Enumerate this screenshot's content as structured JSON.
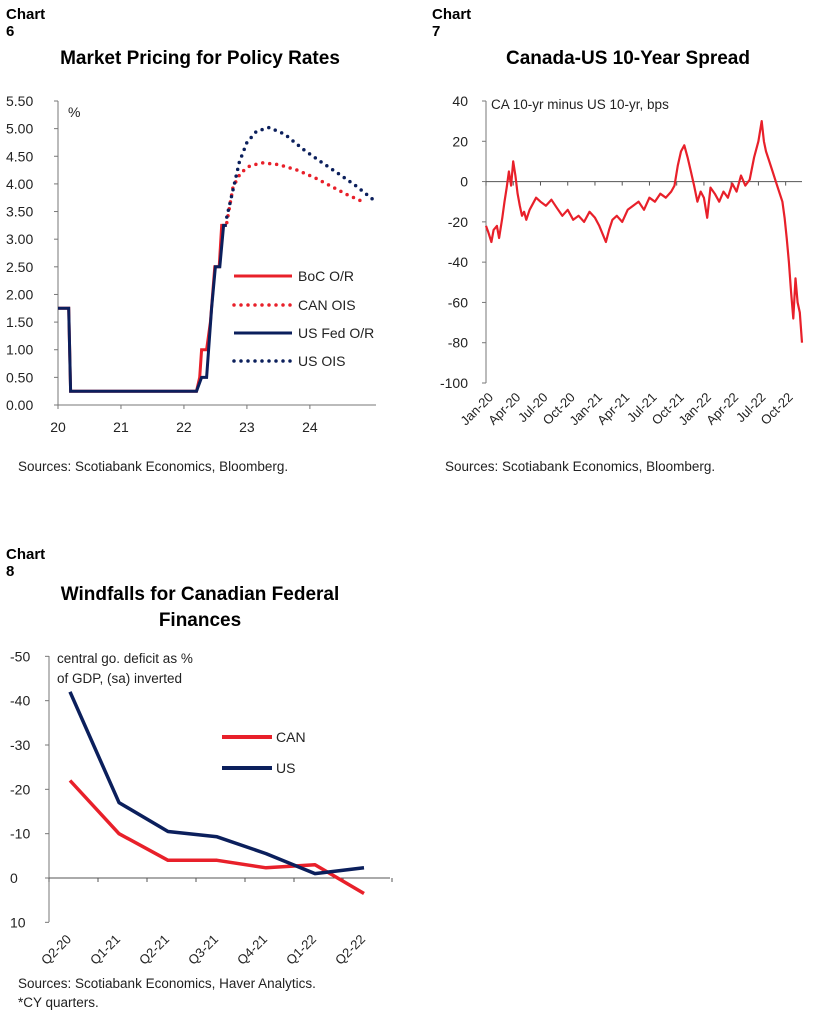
{
  "chart6": {
    "label": "Chart 6",
    "title": "Market Pricing for Policy Rates",
    "source": "Sources: Scotiabank Economics, Bloomberg."
  },
  "chart7": {
    "label": "Chart 7",
    "title": "Canada-US 10-Year Spread",
    "source": "Sources: Scotiabank Economics, Bloomberg."
  },
  "chart8": {
    "label": "Chart 8",
    "title_line1": "Windfalls for Canadian Federal",
    "title_line2": "Finances",
    "source_line1": "Sources: Scotiabank Economics, Haver Analytics.",
    "source_line2": "*CY quarters."
  },
  "colors": {
    "red": "#e8202a",
    "navy": "#0b1f5c"
  },
  "chart_data": [
    {
      "id": "chart6",
      "type": "line",
      "title": "Market Pricing for Policy Rates",
      "ylabel": "%",
      "ylim": [
        0,
        5.5
      ],
      "yticks": [
        "0.00",
        "0.50",
        "1.00",
        "1.50",
        "2.00",
        "2.50",
        "3.00",
        "3.50",
        "4.00",
        "4.50",
        "5.00",
        "5.50"
      ],
      "xlim": [
        20,
        25.05
      ],
      "xticks": [
        "20",
        "21",
        "22",
        "23",
        "24"
      ],
      "legend": "middle-right",
      "series": [
        {
          "name": "BoC O/R",
          "style": "solid",
          "color": "#e8202a",
          "x": [
            20,
            20.17,
            20.2,
            22.2,
            22.25,
            22.28,
            22.36,
            22.42,
            22.49,
            22.56,
            22.6,
            22.68
          ],
          "y": [
            1.75,
            1.75,
            0.25,
            0.25,
            0.5,
            1.0,
            1.0,
            1.5,
            2.5,
            2.5,
            3.25,
            3.25
          ]
        },
        {
          "name": "CAN OIS",
          "style": "dotted",
          "color": "#e8202a",
          "x": [
            22.68,
            22.78,
            22.9,
            23.05,
            23.25,
            23.5,
            23.8,
            24.1,
            24.4,
            24.6,
            24.8
          ],
          "y": [
            3.3,
            3.95,
            4.2,
            4.33,
            4.38,
            4.35,
            4.25,
            4.1,
            3.92,
            3.8,
            3.7
          ]
        },
        {
          "name": "US Fed O/R",
          "style": "solid",
          "color": "#0b1f5c",
          "x": [
            20,
            20.17,
            20.2,
            22.2,
            22.28,
            22.36,
            22.44,
            22.5,
            22.57,
            22.63,
            22.68
          ],
          "y": [
            1.75,
            1.75,
            0.25,
            0.25,
            0.5,
            0.5,
            1.75,
            2.5,
            2.5,
            3.25,
            3.25
          ]
        },
        {
          "name": "US OIS",
          "style": "dotted",
          "color": "#0b1f5c",
          "x": [
            22.68,
            22.78,
            22.88,
            23.0,
            23.15,
            23.35,
            23.6,
            23.9,
            24.2,
            24.5,
            24.75,
            25.0
          ],
          "y": [
            3.4,
            3.9,
            4.4,
            4.75,
            4.95,
            5.02,
            4.9,
            4.62,
            4.38,
            4.15,
            3.95,
            3.72
          ]
        }
      ]
    },
    {
      "id": "chart7",
      "type": "line",
      "title": "Canada-US 10-Year Spread",
      "annotation": "CA 10-yr minus US 10-yr, bps",
      "ylim": [
        -100,
        40
      ],
      "yticks": [
        "40",
        "20",
        "0",
        "-20",
        "-40",
        "-60",
        "-80",
        "-100"
      ],
      "xlim": [
        2020.0,
        2022.9
      ],
      "xticks": [
        "Jan-20",
        "Apr-20",
        "Jul-20",
        "Oct-20",
        "Jan-21",
        "Apr-21",
        "Jul-21",
        "Oct-21",
        "Jan-22",
        "Apr-22",
        "Jul-22",
        "Oct-22"
      ],
      "series": [
        {
          "name": "",
          "color": "#e8202a",
          "x": [
            2020.0,
            2020.02,
            2020.05,
            2020.07,
            2020.1,
            2020.12,
            2020.15,
            2020.17,
            2020.19,
            2020.21,
            2020.23,
            2020.25,
            2020.27,
            2020.29,
            2020.31,
            2020.33,
            2020.35,
            2020.37,
            2020.4,
            2020.43,
            2020.46,
            2020.5,
            2020.55,
            2020.6,
            2020.65,
            2020.7,
            2020.75,
            2020.8,
            2020.85,
            2020.9,
            2020.95,
            2021.0,
            2021.04,
            2021.07,
            2021.1,
            2021.13,
            2021.16,
            2021.2,
            2021.25,
            2021.3,
            2021.35,
            2021.4,
            2021.45,
            2021.5,
            2021.55,
            2021.6,
            2021.65,
            2021.7,
            2021.73,
            2021.76,
            2021.79,
            2021.82,
            2021.85,
            2021.88,
            2021.91,
            2021.94,
            2021.97,
            2022.0,
            2022.03,
            2022.06,
            2022.1,
            2022.14,
            2022.18,
            2022.22,
            2022.26,
            2022.3,
            2022.34,
            2022.38,
            2022.42,
            2022.46,
            2022.5,
            2022.53,
            2022.55,
            2022.57,
            2022.6,
            2022.63,
            2022.66,
            2022.69,
            2022.72,
            2022.74,
            2022.76,
            2022.78,
            2022.8,
            2022.82,
            2022.84,
            2022.86,
            2022.88,
            2022.9
          ],
          "y": [
            -22,
            -25,
            -30,
            -24,
            -22,
            -28,
            -18,
            -10,
            -3,
            5,
            -2,
            10,
            3,
            -6,
            -12,
            -17,
            -15,
            -19,
            -14,
            -11,
            -8,
            -10,
            -12,
            -9,
            -13,
            -17,
            -14,
            -19,
            -17,
            -20,
            -15,
            -18,
            -22,
            -26,
            -30,
            -24,
            -19,
            -17,
            -20,
            -14,
            -12,
            -10,
            -14,
            -8,
            -10,
            -6,
            -8,
            -5,
            -2,
            8,
            15,
            18,
            12,
            5,
            -2,
            -10,
            -5,
            -8,
            -18,
            -3,
            -6,
            -10,
            -5,
            -8,
            -1,
            -5,
            3,
            -2,
            1,
            12,
            20,
            30,
            20,
            15,
            10,
            5,
            0,
            -5,
            -10,
            -18,
            -28,
            -40,
            -55,
            -68,
            -48,
            -60,
            -65,
            -80
          ]
        }
      ]
    },
    {
      "id": "chart8",
      "type": "line",
      "title": "Windfalls for Canadian Federal Finances",
      "annotation": "central go. deficit as % of GDP, (sa) inverted",
      "ylim": [
        10,
        -50
      ],
      "yticks": [
        "-50",
        "-40",
        "-30",
        "-20",
        "-10",
        "0",
        "10"
      ],
      "categories": [
        "Q2-20",
        "Q1-21",
        "Q2-21",
        "Q3-21",
        "Q4-21",
        "Q1-22",
        "Q2-22"
      ],
      "legend": "middle-right",
      "series": [
        {
          "name": "CAN",
          "color": "#e8202a",
          "x": [
            0,
            1,
            2,
            3,
            4,
            5,
            6
          ],
          "y": [
            -22,
            -10,
            -4,
            -4,
            -2.3,
            -3,
            3.5
          ]
        },
        {
          "name": "US",
          "color": "#0b1f5c",
          "x": [
            0,
            1,
            2,
            3,
            4,
            5,
            6
          ],
          "y": [
            -42,
            -17,
            -10.5,
            -9.3,
            -5.5,
            -1,
            -2.3
          ]
        }
      ]
    }
  ]
}
